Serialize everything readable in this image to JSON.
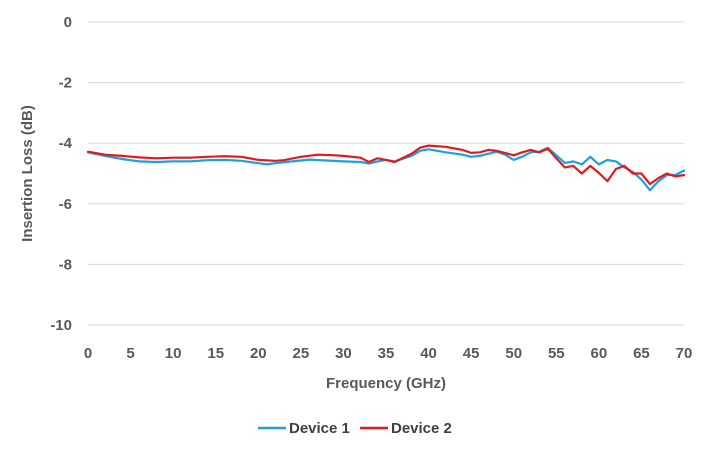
{
  "chart_data": {
    "type": "line",
    "xlabel": "Frequency (GHz)",
    "ylabel": "Insertion Loss (dB)",
    "xlim": [
      0,
      70
    ],
    "ylim": [
      -10,
      0
    ],
    "x_ticks": [
      0,
      5,
      10,
      15,
      20,
      25,
      30,
      35,
      40,
      45,
      50,
      55,
      60,
      65,
      70
    ],
    "y_ticks": [
      0,
      -2,
      -4,
      -6,
      -8,
      -10
    ],
    "grid": "horizontal",
    "legend_position": "bottom",
    "series": [
      {
        "name": "Device 1",
        "color": "#1BA1E2",
        "points": [
          [
            0,
            -4.3
          ],
          [
            2,
            -4.42
          ],
          [
            4,
            -4.52
          ],
          [
            6,
            -4.6
          ],
          [
            8,
            -4.62
          ],
          [
            10,
            -4.6
          ],
          [
            12,
            -4.6
          ],
          [
            14,
            -4.56
          ],
          [
            16,
            -4.55
          ],
          [
            18,
            -4.58
          ],
          [
            20,
            -4.66
          ],
          [
            21,
            -4.7
          ],
          [
            22,
            -4.66
          ],
          [
            24,
            -4.6
          ],
          [
            26,
            -4.54
          ],
          [
            28,
            -4.57
          ],
          [
            30,
            -4.6
          ],
          [
            32,
            -4.62
          ],
          [
            33,
            -4.67
          ],
          [
            34,
            -4.6
          ],
          [
            35,
            -4.55
          ],
          [
            36,
            -4.6
          ],
          [
            38,
            -4.42
          ],
          [
            39,
            -4.25
          ],
          [
            40,
            -4.2
          ],
          [
            42,
            -4.3
          ],
          [
            44,
            -4.38
          ],
          [
            45,
            -4.45
          ],
          [
            46,
            -4.42
          ],
          [
            47,
            -4.35
          ],
          [
            48,
            -4.28
          ],
          [
            49,
            -4.38
          ],
          [
            50,
            -4.55
          ],
          [
            51,
            -4.45
          ],
          [
            52,
            -4.3
          ],
          [
            53,
            -4.28
          ],
          [
            54,
            -4.15
          ],
          [
            55,
            -4.4
          ],
          [
            56,
            -4.65
          ],
          [
            57,
            -4.6
          ],
          [
            58,
            -4.7
          ],
          [
            59,
            -4.45
          ],
          [
            60,
            -4.7
          ],
          [
            61,
            -4.55
          ],
          [
            62,
            -4.6
          ],
          [
            63,
            -4.8
          ],
          [
            64,
            -4.95
          ],
          [
            65,
            -5.2
          ],
          [
            66,
            -5.55
          ],
          [
            67,
            -5.25
          ],
          [
            68,
            -5.05
          ],
          [
            69,
            -5.05
          ],
          [
            70,
            -4.9
          ]
        ]
      },
      {
        "name": "Device 2",
        "color": "#E31A1C",
        "points": [
          [
            0,
            -4.28
          ],
          [
            2,
            -4.38
          ],
          [
            4,
            -4.42
          ],
          [
            6,
            -4.47
          ],
          [
            8,
            -4.5
          ],
          [
            10,
            -4.48
          ],
          [
            12,
            -4.48
          ],
          [
            14,
            -4.45
          ],
          [
            16,
            -4.43
          ],
          [
            18,
            -4.45
          ],
          [
            20,
            -4.55
          ],
          [
            22,
            -4.58
          ],
          [
            23,
            -4.56
          ],
          [
            25,
            -4.45
          ],
          [
            27,
            -4.38
          ],
          [
            29,
            -4.4
          ],
          [
            30,
            -4.42
          ],
          [
            32,
            -4.48
          ],
          [
            33,
            -4.62
          ],
          [
            34,
            -4.5
          ],
          [
            35,
            -4.55
          ],
          [
            36,
            -4.62
          ],
          [
            38,
            -4.35
          ],
          [
            39,
            -4.15
          ],
          [
            40,
            -4.08
          ],
          [
            42,
            -4.12
          ],
          [
            44,
            -4.22
          ],
          [
            45,
            -4.32
          ],
          [
            46,
            -4.3
          ],
          [
            47,
            -4.22
          ],
          [
            48,
            -4.25
          ],
          [
            50,
            -4.4
          ],
          [
            51,
            -4.3
          ],
          [
            52,
            -4.22
          ],
          [
            53,
            -4.3
          ],
          [
            54,
            -4.18
          ],
          [
            55,
            -4.5
          ],
          [
            56,
            -4.8
          ],
          [
            57,
            -4.75
          ],
          [
            58,
            -5.0
          ],
          [
            59,
            -4.75
          ],
          [
            60,
            -4.98
          ],
          [
            61,
            -5.25
          ],
          [
            62,
            -4.85
          ],
          [
            63,
            -4.75
          ],
          [
            64,
            -5.0
          ],
          [
            65,
            -5.0
          ],
          [
            66,
            -5.35
          ],
          [
            67,
            -5.15
          ],
          [
            68,
            -5.0
          ],
          [
            69,
            -5.1
          ],
          [
            70,
            -5.05
          ]
        ]
      }
    ]
  }
}
